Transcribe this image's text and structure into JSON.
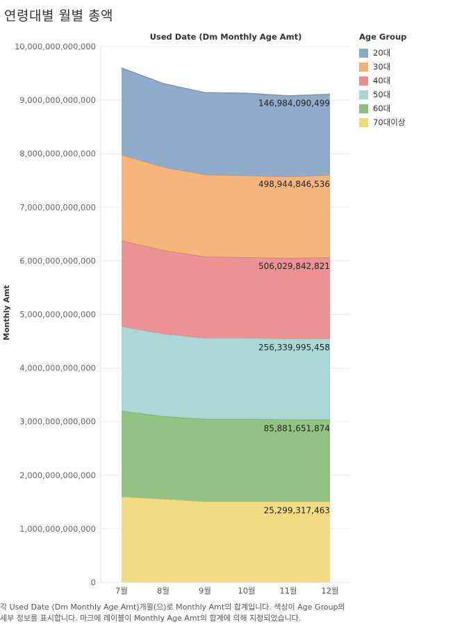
{
  "page": {
    "title": "연령대별 월별 총액",
    "footnote": "각 Used Date (Dm Monthly Age Amt)개월(으)로 Monthly Amt의 합계입니다. 색상이 Age Group의 세부 정보를 표시합니다. 마크에 레이블이 Monthly Age Amt의 합계에 의해 지정되었습니다."
  },
  "legend": {
    "title": "Age Group"
  },
  "chart_data": {
    "type": "area",
    "stacked": true,
    "title": "Used Date (Dm Monthly Age Amt)",
    "xlabel": "",
    "ylabel": "Monthly Amt",
    "categories": [
      "7월",
      "8월",
      "9월",
      "10월",
      "11월",
      "12월"
    ],
    "ylim": [
      0,
      10000000000000
    ],
    "yticks": [
      0,
      1000000000000,
      2000000000000,
      3000000000000,
      4000000000000,
      5000000000000,
      6000000000000,
      7000000000000,
      8000000000000,
      9000000000000,
      10000000000000
    ],
    "ytick_labels": [
      "0",
      "1,000,000,000,000",
      "2,000,000,000,000",
      "3,000,000,000,000",
      "4,000,000,000,000",
      "5,000,000,000,000",
      "6,000,000,000,000",
      "7,000,000,000,000",
      "8,000,000,000,000",
      "9,000,000,000,000",
      "10,000,000,000,000"
    ],
    "grid": true,
    "legend_position": "right",
    "series": [
      {
        "name": "70대이상",
        "color": "#f1d97c",
        "values": [
          1600000000000,
          1560000000000,
          1510000000000,
          1510000000000,
          1510000000000,
          1510000000000
        ],
        "label": "25,299,317,463"
      },
      {
        "name": "60대",
        "color": "#8dc07d",
        "values": [
          1600000000000,
          1540000000000,
          1540000000000,
          1540000000000,
          1530000000000,
          1530000000000
        ],
        "label": "85,881,651,874"
      },
      {
        "name": "50대",
        "color": "#a8d5d2",
        "values": [
          1580000000000,
          1540000000000,
          1510000000000,
          1510000000000,
          1510000000000,
          1510000000000
        ],
        "label": "256,339,995,458"
      },
      {
        "name": "40대",
        "color": "#ec8c8e",
        "values": [
          1600000000000,
          1560000000000,
          1520000000000,
          1510000000000,
          1500000000000,
          1520000000000
        ],
        "label": "506,029,842,821"
      },
      {
        "name": "30대",
        "color": "#f5b274",
        "values": [
          1600000000000,
          1550000000000,
          1530000000000,
          1520000000000,
          1520000000000,
          1530000000000
        ],
        "label": "498,944,846,536"
      },
      {
        "name": "20대",
        "color": "#8aa7c8",
        "values": [
          1620000000000,
          1560000000000,
          1530000000000,
          1540000000000,
          1510000000000,
          1510000000000
        ],
        "label": "146,984,090,499"
      }
    ],
    "legend_order": [
      "20대",
      "30대",
      "40대",
      "50대",
      "60대",
      "70대이상"
    ]
  }
}
